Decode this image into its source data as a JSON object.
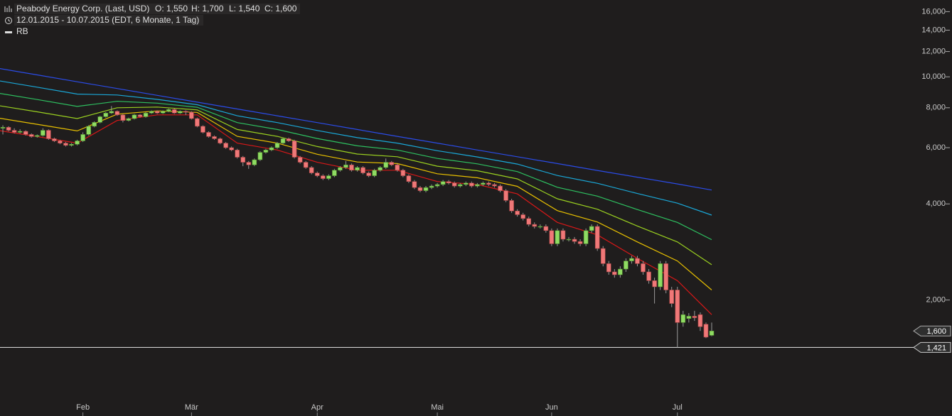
{
  "chart_data": {
    "type": "candlestick",
    "title": "Peabody Energy Corp. (Last, USD)",
    "ohlc_labels": [
      "O: 1,550",
      "H: 1,700",
      "L: 1,540",
      "C: 1,600"
    ],
    "subtitle": "12.01.2015 - 10.07.2015 (EDT, 6 Monate, 1 Tag)",
    "log_scale": true,
    "ylim": [
      990,
      17400
    ],
    "yticks": [
      {
        "value": 2000,
        "label": "2,000"
      },
      {
        "value": 4000,
        "label": "4,000"
      },
      {
        "value": 6000,
        "label": "6,000"
      },
      {
        "value": 8000,
        "label": "8,000"
      },
      {
        "value": 10000,
        "label": "10,000"
      },
      {
        "value": 12000,
        "label": "12,000"
      },
      {
        "value": 14000,
        "label": "14,000"
      },
      {
        "value": 16000,
        "label": "16,000"
      }
    ],
    "up_color": "#8fdc63",
    "down_color": "#f07878",
    "categories": [
      null,
      null,
      null,
      null,
      null,
      null,
      null,
      null,
      null,
      null,
      null,
      null,
      null,
      null,
      null,
      "Feb",
      null,
      null,
      null,
      null,
      null,
      null,
      null,
      null,
      null,
      null,
      null,
      null,
      null,
      null,
      null,
      null,
      null,
      null,
      "Mär",
      null,
      null,
      null,
      null,
      null,
      null,
      null,
      null,
      null,
      null,
      null,
      null,
      null,
      null,
      null,
      null,
      null,
      null,
      null,
      null,
      null,
      "Apr",
      null,
      null,
      null,
      null,
      null,
      null,
      null,
      null,
      null,
      null,
      null,
      null,
      null,
      null,
      null,
      null,
      null,
      null,
      null,
      null,
      "Mai",
      null,
      null,
      null,
      null,
      null,
      null,
      null,
      null,
      null,
      null,
      null,
      null,
      null,
      null,
      null,
      null,
      null,
      null,
      null,
      "Jun",
      null,
      null,
      null,
      null,
      null,
      null,
      null,
      null,
      null,
      null,
      null,
      null,
      null,
      null,
      null,
      null,
      null,
      null,
      null,
      null,
      null,
      "Jul",
      null,
      null,
      null,
      null,
      null,
      null
    ],
    "candles": [
      [
        6850,
        7000,
        6750,
        6900
      ],
      [
        6900,
        7050,
        6600,
        6950
      ],
      [
        6950,
        7000,
        6750,
        6800
      ],
      [
        6800,
        6900,
        6650,
        6700
      ],
      [
        6700,
        6850,
        6650,
        6750
      ],
      [
        6750,
        6800,
        6550,
        6600
      ],
      [
        6600,
        6650,
        6450,
        6500
      ],
      [
        6500,
        6600,
        6450,
        6550
      ],
      [
        6550,
        6900,
        6500,
        6800
      ],
      [
        6800,
        6850,
        6350,
        6400
      ],
      [
        6400,
        6450,
        6250,
        6300
      ],
      [
        6300,
        6350,
        6150,
        6200
      ],
      [
        6200,
        6250,
        6050,
        6100
      ],
      [
        6100,
        6200,
        6050,
        6150
      ],
      [
        6150,
        6350,
        6100,
        6300
      ],
      [
        6300,
        6700,
        6250,
        6600
      ],
      [
        6600,
        7050,
        6550,
        7000
      ],
      [
        7000,
        7250,
        6950,
        7200
      ],
      [
        7200,
        7550,
        7150,
        7500
      ],
      [
        7500,
        7750,
        7450,
        7700
      ],
      [
        7700,
        8100,
        7650,
        7800
      ],
      [
        7800,
        7850,
        7550,
        7600
      ],
      [
        7600,
        7650,
        7200,
        7300
      ],
      [
        7300,
        7450,
        7250,
        7400
      ],
      [
        7400,
        7650,
        7350,
        7600
      ],
      [
        7600,
        7650,
        7450,
        7500
      ],
      [
        7500,
        7750,
        7450,
        7700
      ],
      [
        7700,
        7850,
        7650,
        7800
      ],
      [
        7800,
        7850,
        7650,
        7700
      ],
      [
        7700,
        7850,
        7650,
        7800
      ],
      [
        7800,
        7950,
        7750,
        7900
      ],
      [
        7900,
        7950,
        7650,
        7700
      ],
      [
        7700,
        7850,
        7650,
        7800
      ],
      [
        7800,
        7850,
        7600,
        7750
      ],
      [
        7750,
        7800,
        7350,
        7400
      ],
      [
        7400,
        7450,
        6950,
        7000
      ],
      [
        7000,
        7050,
        6650,
        6700
      ],
      [
        6700,
        6750,
        6450,
        6500
      ],
      [
        6500,
        6550,
        6350,
        6400
      ],
      [
        6400,
        6450,
        6150,
        6200
      ],
      [
        6200,
        6250,
        5950,
        6000
      ],
      [
        6000,
        6050,
        5850,
        5900
      ],
      [
        5900,
        5950,
        5550,
        5600
      ],
      [
        5600,
        5650,
        5250,
        5400
      ],
      [
        5400,
        5450,
        5150,
        5300
      ],
      [
        5300,
        5550,
        5250,
        5500
      ],
      [
        5500,
        5850,
        5450,
        5800
      ],
      [
        5800,
        5950,
        5750,
        5900
      ],
      [
        5900,
        6050,
        5850,
        6000
      ],
      [
        6000,
        6250,
        5950,
        6200
      ],
      [
        6200,
        6450,
        6150,
        6400
      ],
      [
        6400,
        6450,
        6250,
        6300
      ],
      [
        6300,
        6350,
        5550,
        5600
      ],
      [
        5600,
        5650,
        5350,
        5400
      ],
      [
        5400,
        5450,
        5150,
        5200
      ],
      [
        5200,
        5250,
        4950,
        5000
      ],
      [
        5000,
        5050,
        4850,
        4900
      ],
      [
        4900,
        4950,
        4750,
        4800
      ],
      [
        4800,
        4950,
        4750,
        4900
      ],
      [
        4900,
        5150,
        4850,
        5100
      ],
      [
        5100,
        5250,
        5050,
        5200
      ],
      [
        5200,
        5450,
        5150,
        5300
      ],
      [
        5300,
        5350,
        5050,
        5100
      ],
      [
        5100,
        5250,
        5050,
        5200
      ],
      [
        5200,
        5250,
        4950,
        5000
      ],
      [
        5000,
        5050,
        4850,
        4900
      ],
      [
        4900,
        5150,
        4850,
        5100
      ],
      [
        5100,
        5250,
        5050,
        5200
      ],
      [
        5200,
        5550,
        5150,
        5400
      ],
      [
        5400,
        5450,
        5250,
        5300
      ],
      [
        5300,
        5350,
        5050,
        5100
      ],
      [
        5100,
        5150,
        4850,
        4900
      ],
      [
        4900,
        4950,
        4650,
        4700
      ],
      [
        4700,
        4750,
        4450,
        4500
      ],
      [
        4500,
        4550,
        4350,
        4400
      ],
      [
        4400,
        4550,
        4350,
        4500
      ],
      [
        4500,
        4600,
        4450,
        4550
      ],
      [
        4550,
        4650,
        4500,
        4600
      ],
      [
        4600,
        4750,
        4550,
        4700
      ],
      [
        4700,
        4750,
        4600,
        4650
      ],
      [
        4650,
        4700,
        4500,
        4550
      ],
      [
        4550,
        4650,
        4500,
        4600
      ],
      [
        4600,
        4700,
        4550,
        4650
      ],
      [
        4650,
        4700,
        4500,
        4550
      ],
      [
        4550,
        4650,
        4500,
        4600
      ],
      [
        4600,
        4700,
        4550,
        4650
      ],
      [
        4650,
        4700,
        4550,
        4600
      ],
      [
        4600,
        4650,
        4500,
        4550
      ],
      [
        4550,
        4600,
        4350,
        4400
      ],
      [
        4400,
        4450,
        4050,
        4100
      ],
      [
        4100,
        4150,
        3750,
        3800
      ],
      [
        3800,
        3850,
        3650,
        3700
      ],
      [
        3700,
        3750,
        3550,
        3600
      ],
      [
        3600,
        3650,
        3400,
        3450
      ],
      [
        3450,
        3500,
        3350,
        3400
      ],
      [
        3400,
        3450,
        3350,
        3400
      ],
      [
        3400,
        3450,
        3250,
        3300
      ],
      [
        3300,
        3350,
        2950,
        3000
      ],
      [
        3000,
        3350,
        2950,
        3300
      ],
      [
        3300,
        3350,
        3050,
        3100
      ],
      [
        3100,
        3150,
        3050,
        3100
      ],
      [
        3100,
        3150,
        3000,
        3050
      ],
      [
        3050,
        3100,
        2950,
        3000
      ],
      [
        3000,
        3350,
        2950,
        3300
      ],
      [
        3300,
        3450,
        3250,
        3400
      ],
      [
        3400,
        3450,
        2850,
        2900
      ],
      [
        2900,
        2950,
        2550,
        2600
      ],
      [
        2600,
        2650,
        2400,
        2450
      ],
      [
        2450,
        2500,
        2350,
        2400
      ],
      [
        2400,
        2550,
        2350,
        2500
      ],
      [
        2500,
        2700,
        2450,
        2650
      ],
      [
        2650,
        2750,
        2600,
        2700
      ],
      [
        2700,
        2750,
        2550,
        2600
      ],
      [
        2600,
        2650,
        2400,
        2450
      ],
      [
        2450,
        2500,
        2250,
        2300
      ],
      [
        2300,
        2350,
        1950,
        2200
      ],
      [
        2200,
        2650,
        2150,
        2600
      ],
      [
        2600,
        2650,
        2100,
        2150
      ],
      [
        2150,
        2200,
        1900,
        1950
      ],
      [
        2150,
        2200,
        1421,
        1700
      ],
      [
        1700,
        1850,
        1650,
        1800
      ],
      [
        1750,
        1820,
        1700,
        1780
      ],
      [
        1780,
        1850,
        1720,
        1760
      ],
      [
        1800,
        1830,
        1600,
        1650
      ],
      [
        1680,
        1700,
        1520,
        1530
      ],
      [
        1550,
        1700,
        1540,
        1600
      ]
    ],
    "rainbow": {
      "name": "RB",
      "x": [
        0,
        7,
        14,
        21,
        28,
        35,
        42,
        49,
        56,
        63,
        70,
        77,
        84,
        91,
        98,
        105,
        112,
        119,
        125
      ],
      "lines": [
        {
          "color": "#2b4ce8",
          "values": [
            10650,
            10140,
            9650,
            9190,
            8750,
            8330,
            7930,
            7550,
            7190,
            6840,
            6510,
            6200,
            5900,
            5620,
            5350,
            5090,
            4850,
            4620,
            4420
          ]
        },
        {
          "color": "#1aa8d8",
          "values": [
            9740,
            9280,
            8830,
            8770,
            8500,
            8180,
            7550,
            7190,
            6790,
            6450,
            6200,
            5870,
            5610,
            5330,
            4910,
            4640,
            4310,
            4020,
            3690
          ]
        },
        {
          "color": "#2ec060",
          "values": [
            8900,
            8490,
            8080,
            8380,
            8270,
            8030,
            7190,
            6840,
            6410,
            6080,
            5900,
            5550,
            5340,
            5050,
            4510,
            4230,
            3840,
            3500,
            3090
          ]
        },
        {
          "color": "#9ad020",
          "values": [
            8140,
            7770,
            7400,
            8000,
            8040,
            7880,
            6840,
            6510,
            6050,
            5730,
            5620,
            5250,
            5080,
            4790,
            4150,
            3850,
            3410,
            3040,
            2580
          ]
        },
        {
          "color": "#e8c000",
          "values": [
            7440,
            7100,
            6770,
            7640,
            7820,
            7740,
            6510,
            6200,
            5720,
            5410,
            5350,
            4970,
            4830,
            4540,
            3810,
            3510,
            3040,
            2650,
            2150
          ]
        },
        {
          "color": "#d81818",
          "values": [
            6800,
            6500,
            6200,
            7300,
            7600,
            7600,
            6200,
            5900,
            5400,
            5100,
            5100,
            4700,
            4600,
            4300,
            3500,
            3200,
            2700,
            2300,
            1800
          ]
        }
      ]
    },
    "last_price": {
      "value": 1600,
      "label": "1,600"
    },
    "price_line": {
      "value": 1421,
      "label": "1,421"
    }
  }
}
